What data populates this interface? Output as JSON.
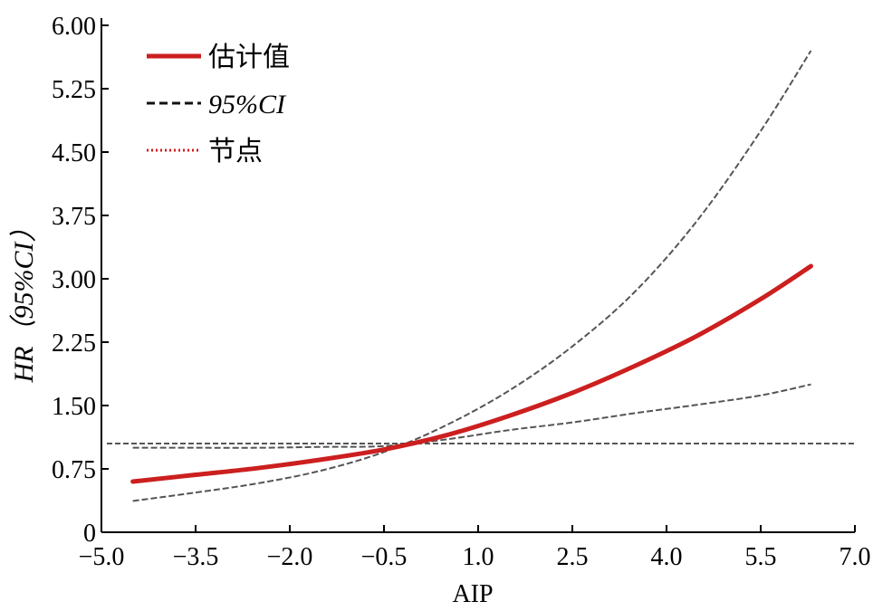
{
  "chart_data": {
    "type": "line",
    "xlabel": "AIP",
    "ylabel": "HR（95%CI）",
    "xlim": [
      -5.0,
      7.0
    ],
    "ylim": [
      0,
      6.0
    ],
    "x_ticks": [
      "−5.0",
      "−3.5",
      "−2.0",
      "−0.5",
      "1.0",
      "2.5",
      "4.0",
      "5.5",
      "7.0"
    ],
    "x_tick_values": [
      -5.0,
      -3.5,
      -2.0,
      -0.5,
      1.0,
      2.5,
      4.0,
      5.5,
      7.0
    ],
    "y_ticks": [
      "0",
      "0.75",
      "1.50",
      "2.25",
      "3.00",
      "3.75",
      "4.50",
      "5.25",
      "6.00"
    ],
    "y_tick_values": [
      0,
      0.75,
      1.5,
      2.25,
      3.0,
      3.75,
      4.5,
      5.25,
      6.0
    ],
    "legend": {
      "placement": "top-left",
      "entries": [
        {
          "label": "估计值",
          "style": "solid",
          "color": "#cc1f1f"
        },
        {
          "label": "95%CI",
          "style": "dashed",
          "color": "#111111"
        },
        {
          "label": "节点",
          "style": "dotted",
          "color": "#cc1f1f"
        }
      ]
    },
    "grid": false,
    "series": [
      {
        "name": "估计值",
        "color": "#cc1f1f",
        "style": "solid",
        "x": [
          -4.5,
          -3.5,
          -2.5,
          -1.5,
          -0.5,
          0.5,
          1.5,
          2.5,
          3.5,
          4.5,
          5.5,
          6.3
        ],
        "y": [
          0.6,
          0.68,
          0.76,
          0.86,
          0.98,
          1.15,
          1.38,
          1.65,
          1.97,
          2.33,
          2.76,
          3.15
        ]
      },
      {
        "name": "95%CI",
        "color": "#555555",
        "style": "dashed",
        "x": [
          -4.5,
          -3.5,
          -2.5,
          -1.5,
          -0.5,
          0.5,
          1.5,
          2.5,
          3.5,
          4.5,
          5.5,
          6.3
        ],
        "y": [
          0.37,
          0.47,
          0.58,
          0.73,
          0.95,
          1.27,
          1.68,
          2.2,
          2.85,
          3.7,
          4.75,
          5.7
        ]
      },
      {
        "name": "95%CI",
        "color": "#555555",
        "style": "dashed",
        "x": [
          -4.5,
          -3.5,
          -2.5,
          -1.5,
          -0.5,
          0.5,
          1.5,
          2.5,
          3.5,
          4.5,
          5.5,
          6.3
        ],
        "y": [
          1.0,
          1.0,
          1.0,
          1.01,
          1.02,
          1.1,
          1.21,
          1.3,
          1.41,
          1.51,
          1.62,
          1.75
        ]
      }
    ],
    "reference_line": {
      "y": 1.05,
      "x": [
        -5.0,
        7.0
      ],
      "style": "dashed",
      "color": "#555555"
    }
  }
}
